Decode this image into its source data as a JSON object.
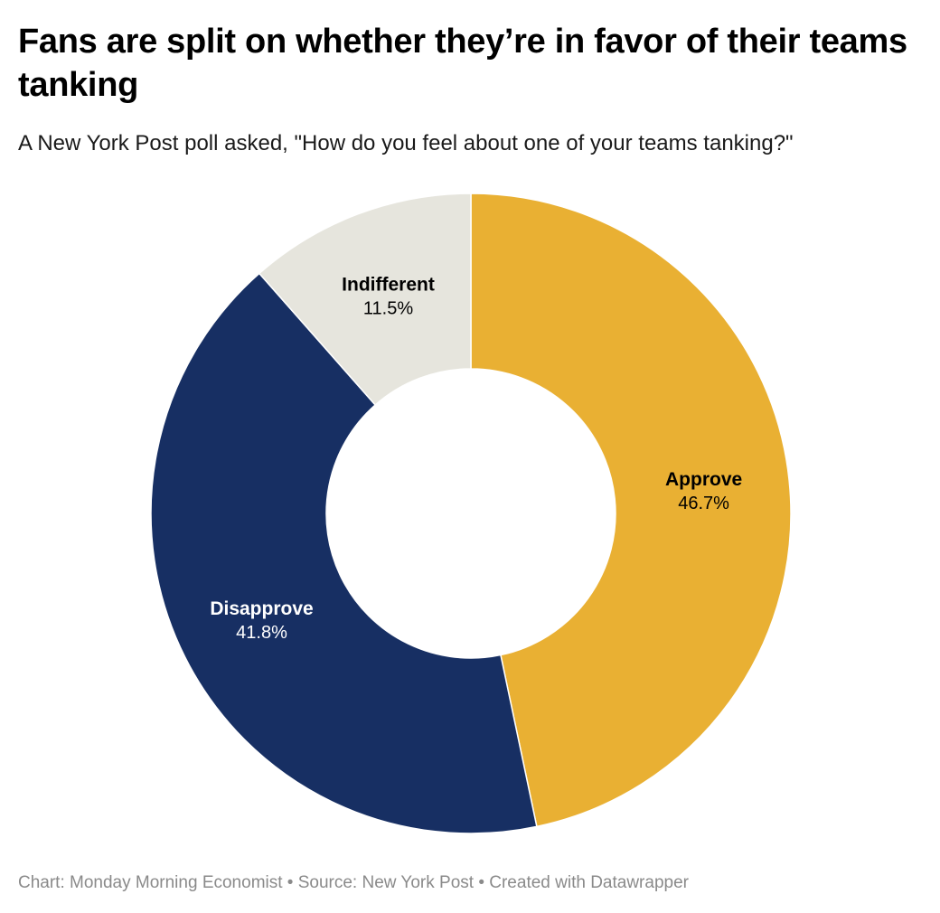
{
  "header": {
    "title": "Fans are split on whether they’re in favor of their teams tanking",
    "subtitle": "A New York Post poll asked, \"How do you feel about one of your teams tanking?\""
  },
  "footer": {
    "credit": "Chart: Monday Morning Economist • Source: New York Post • Created with Datawrapper"
  },
  "chart_data": {
    "type": "pie",
    "variant": "donut",
    "categories": [
      "Approve",
      "Disapprove",
      "Indifferent"
    ],
    "values": [
      46.7,
      41.8,
      11.5
    ],
    "value_labels": [
      "46.7%",
      "41.8%",
      "11.5%"
    ],
    "unit": "%",
    "colors": [
      "#E9B033",
      "#172F63",
      "#E6E5DD"
    ],
    "label_colors": [
      "#000000",
      "#ffffff",
      "#000000"
    ],
    "start": "top",
    "direction": "clockwise",
    "legend": "none"
  }
}
